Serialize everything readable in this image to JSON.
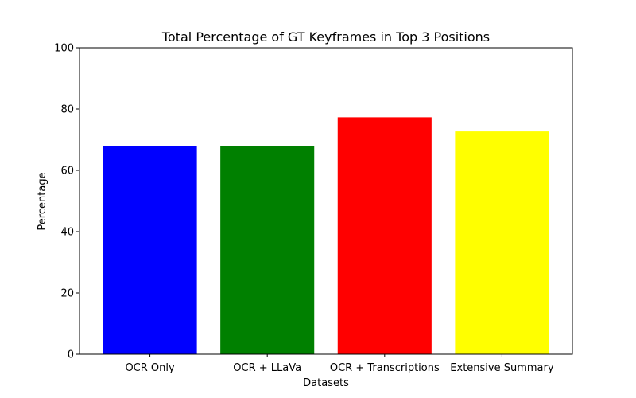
{
  "chart_data": {
    "type": "bar",
    "title": "Total Percentage of GT Keyframes in Top 3 Positions",
    "xlabel": "Datasets",
    "ylabel": "Percentage",
    "categories": [
      "OCR Only",
      "OCR + LLaVa",
      "OCR + Transcriptions",
      "Extensive Summary"
    ],
    "values": [
      68.0,
      68.0,
      77.3,
      72.7
    ],
    "colors": [
      "#0000ff",
      "#008000",
      "#ff0000",
      "#ffff00"
    ],
    "ylim": [
      0,
      100
    ],
    "yticks": [
      0,
      20,
      40,
      60,
      80,
      100
    ],
    "grid": false,
    "legend": "none"
  }
}
